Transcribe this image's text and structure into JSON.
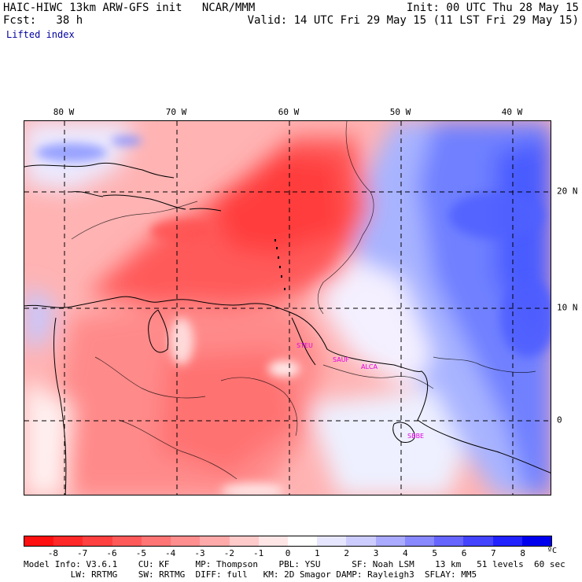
{
  "header": {
    "model_title": "HAIC-HIWC 13km ARW-GFS init   NCAR/MMM",
    "forecast": "Fcst:   38 h",
    "init": "Init: 00 UTC Thu 28 May 15",
    "valid": "Valid: 14 UTC Fri 29 May 15 (11 LST Fri 29 May 15)",
    "field": "Lifted index"
  },
  "map": {
    "lon_labels": [
      "80 W",
      "70 W",
      "60 W",
      "50 W",
      "40 W"
    ],
    "lat_labels": [
      "20 N",
      "10 N",
      "0"
    ],
    "stations": [
      "STEU",
      "SAUF",
      "ALCA",
      "SBBE"
    ]
  },
  "colorbar": {
    "labels": [
      "-8",
      "-7",
      "-6",
      "-5",
      "-4",
      "-3",
      "-2",
      "-1",
      "0",
      "1",
      "2",
      "3",
      "4",
      "5",
      "6",
      "7",
      "8"
    ],
    "unit": "ºC",
    "colors": [
      "#ff1010",
      "#ff2828",
      "#ff4040",
      "#ff5a5a",
      "#ff7474",
      "#ff8e8e",
      "#ffaaaa",
      "#ffcaca",
      "#ffe6e6",
      "#ffffff",
      "#e6e6ff",
      "#ccccff",
      "#aaaaff",
      "#8888ff",
      "#6666ff",
      "#4444ff",
      "#2222ff",
      "#0000ee"
    ]
  },
  "footer": {
    "line1": "Model Info: V3.6.1    CU: KF     MP: Thompson    PBL: YSU      SF: Noah LSM    13 km   51 levels  60 sec",
    "line2": "         LW: RRTMG    SW: RRTMG  DIFF: full   KM: 2D Smagor DAMP: Rayleigh3  SFLAY: MM5"
  }
}
